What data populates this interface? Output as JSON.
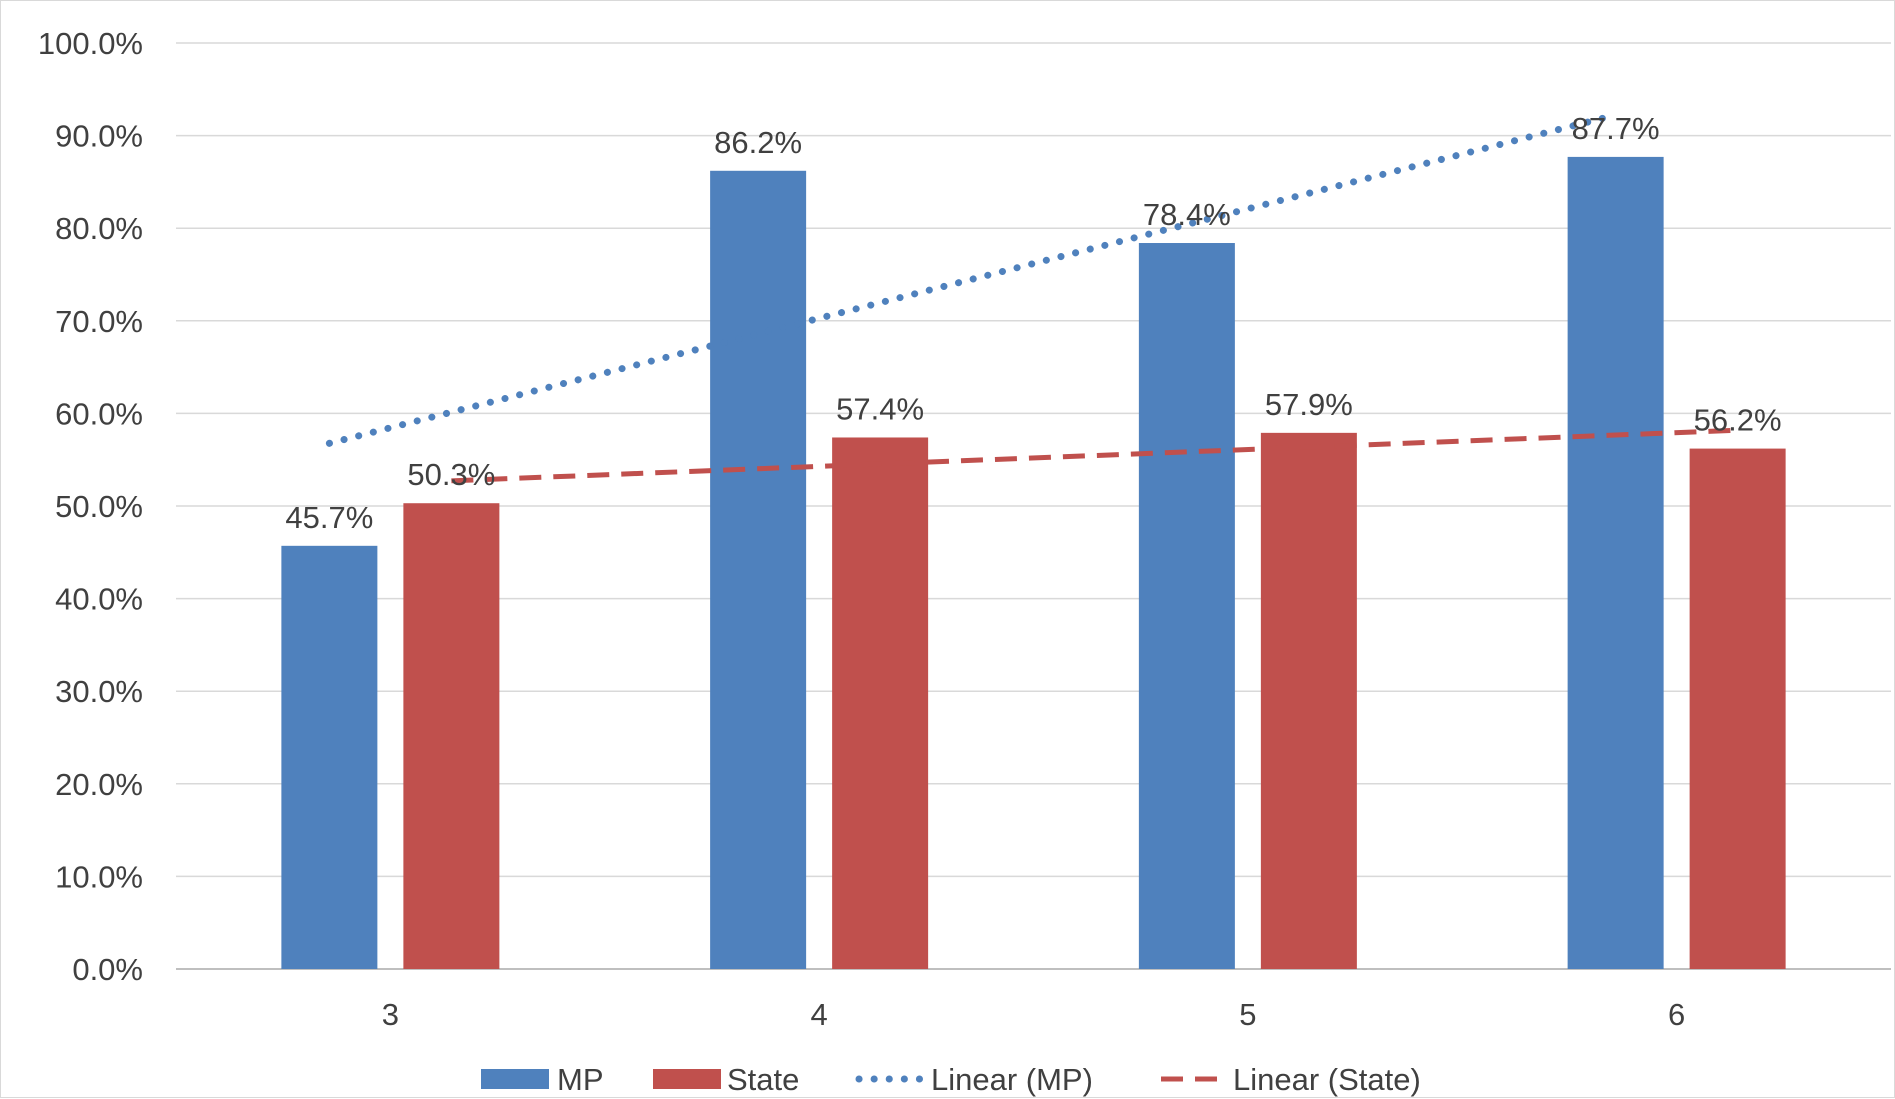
{
  "chart_data": {
    "type": "bar",
    "categories": [
      "3",
      "4",
      "5",
      "6"
    ],
    "series": [
      {
        "name": "MP",
        "values": [
          45.7,
          86.2,
          78.4,
          87.7
        ],
        "labels": [
          "45.7%",
          "86.2%",
          "78.4%",
          "87.7%"
        ],
        "color": "#4F81BD"
      },
      {
        "name": "State",
        "values": [
          50.3,
          57.4,
          57.9,
          56.2
        ],
        "labels": [
          "50.3%",
          "57.4%",
          "57.9%",
          "56.2%"
        ],
        "color": "#C0504D"
      }
    ],
    "trendlines": [
      {
        "name": "Linear (MP)",
        "series": "MP",
        "type": "linear",
        "style": "dotted",
        "color": "#4F81BD"
      },
      {
        "name": "Linear (State)",
        "series": "State",
        "type": "linear",
        "style": "dashed",
        "color": "#C0504D"
      }
    ],
    "ylim": [
      0,
      100
    ],
    "y_ticks": [
      "0.0%",
      "10.0%",
      "20.0%",
      "30.0%",
      "40.0%",
      "50.0%",
      "60.0%",
      "70.0%",
      "80.0%",
      "90.0%",
      "100.0%"
    ],
    "grid": true,
    "legend_position": "bottom",
    "xlabel": "",
    "ylabel": "",
    "title": ""
  }
}
